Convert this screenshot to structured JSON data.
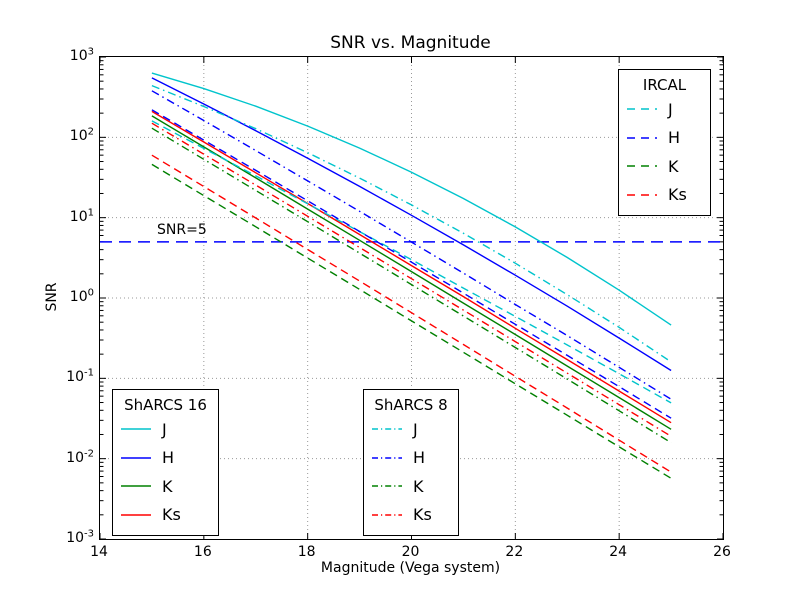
{
  "figure": {
    "title": "SNR vs. Magnitude",
    "xlabel": "Magnitude (Vega system)",
    "ylabel": "SNR",
    "background": "#ffffff"
  },
  "axes": {
    "xlim": [
      14,
      26
    ],
    "x_tick_labels": [
      "14",
      "16",
      "18",
      "20",
      "22",
      "24",
      "26"
    ],
    "x_ticks": [
      14,
      16,
      18,
      20,
      22,
      24,
      26
    ],
    "y_exponents": [
      "3",
      "2",
      "1",
      "0",
      "-1",
      "-2",
      "-3"
    ],
    "ylim": [
      0.001,
      1000
    ],
    "grid": "dotted",
    "grid_color": "#999999",
    "tick_color": "#000000"
  },
  "annotation": {
    "label": "SNR=5",
    "value": 5,
    "color": "#0000ff",
    "style": "dashed"
  },
  "band_colors": {
    "J": "#00c4cc",
    "H": "#0000ff",
    "K": "#008000",
    "Ks": "#ff0000"
  },
  "legends": [
    {
      "key": "ircal",
      "title": "IRCAL",
      "style": "dashed",
      "entries": [
        {
          "label": "J",
          "band": "J"
        },
        {
          "label": "H",
          "band": "H"
        },
        {
          "label": "K",
          "band": "K"
        },
        {
          "label": "Ks",
          "band": "Ks"
        }
      ]
    },
    {
      "key": "sharcs16",
      "title": "ShARCS 16",
      "style": "solid",
      "entries": [
        {
          "label": "J",
          "band": "J"
        },
        {
          "label": "H",
          "band": "H"
        },
        {
          "label": "K",
          "band": "K"
        },
        {
          "label": "Ks",
          "band": "Ks"
        }
      ]
    },
    {
      "key": "sharcs8",
      "title": "ShARCS 8",
      "style": "dashdot",
      "entries": [
        {
          "label": "J",
          "band": "J"
        },
        {
          "label": "H",
          "band": "H"
        },
        {
          "label": "K",
          "band": "K"
        },
        {
          "label": "Ks",
          "band": "Ks"
        }
      ]
    }
  ],
  "chart_data": {
    "type": "line",
    "x_axis": "Magnitude (Vega system)",
    "y_axis": "SNR (log scale)",
    "x": [
      15,
      16,
      17,
      18,
      19,
      20,
      21,
      22,
      23,
      24,
      25
    ],
    "series": [
      {
        "name": "ShARCS 16 J",
        "band": "J",
        "style": "solid",
        "values": [
          631,
          404,
          244,
          138,
          73.5,
          36.8,
          17.3,
          7.67,
          3.19,
          1.25,
          0.46
        ]
      },
      {
        "name": "ShARCS 16 H",
        "band": "H",
        "style": "solid",
        "values": [
          550,
          260,
          121,
          55.0,
          24.5,
          10.7,
          4.58,
          1.92,
          0.79,
          0.317,
          0.125
        ]
      },
      {
        "name": "ShARCS 16 K",
        "band": "K",
        "style": "solid",
        "values": [
          185,
          76.1,
          31.3,
          12.8,
          5.23,
          2.13,
          0.865,
          0.351,
          0.142,
          0.0575,
          0.0232
        ]
      },
      {
        "name": "ShARCS 16 Ks",
        "band": "Ks",
        "style": "solid",
        "values": [
          210,
          87.4,
          36.2,
          15.0,
          6.17,
          2.53,
          1.04,
          0.42,
          0.171,
          0.0694,
          0.028
        ]
      },
      {
        "name": "ShARCS 8 J",
        "band": "J",
        "style": "dashdot",
        "values": [
          440,
          242,
          128,
          64.3,
          31.1,
          14.4,
          6.38,
          2.71,
          1.1,
          0.43,
          0.16
        ]
      },
      {
        "name": "ShARCS 8 H",
        "band": "H",
        "style": "dashdot",
        "values": [
          380,
          162,
          68.3,
          28.7,
          12.0,
          4.96,
          2.04,
          0.83,
          0.34,
          0.137,
          0.055
        ]
      },
      {
        "name": "ShARCS 8 K",
        "band": "K",
        "style": "dashdot",
        "values": [
          130,
          53.3,
          21.8,
          8.9,
          3.62,
          1.47,
          0.597,
          0.242,
          0.0977,
          0.0394,
          0.0158
        ]
      },
      {
        "name": "ShARCS 8 Ks",
        "band": "Ks",
        "style": "dashdot",
        "values": [
          150,
          61.7,
          25.4,
          10.4,
          4.25,
          1.74,
          0.706,
          0.287,
          0.116,
          0.047,
          0.019
        ]
      },
      {
        "name": "IRCAL J",
        "band": "J",
        "style": "dashed",
        "values": [
          160,
          72.9,
          33.1,
          14.9,
          6.7,
          3.0,
          1.33,
          0.59,
          0.26,
          0.114,
          0.0495
        ]
      },
      {
        "name": "IRCAL H",
        "band": "H",
        "style": "dashed",
        "values": [
          220,
          92.5,
          38.8,
          16.2,
          6.73,
          2.79,
          1.15,
          0.47,
          0.193,
          0.0787,
          0.0319
        ]
      },
      {
        "name": "IRCAL K",
        "band": "K",
        "style": "dashed",
        "values": [
          46,
          18.8,
          7.69,
          3.14,
          1.28,
          0.519,
          0.211,
          0.0856,
          0.0347,
          0.014,
          0.0057
        ]
      },
      {
        "name": "IRCAL Ks",
        "band": "Ks",
        "style": "dashed",
        "values": [
          60,
          24.4,
          9.91,
          4.02,
          1.63,
          0.656,
          0.264,
          0.106,
          0.0426,
          0.017,
          0.0068
        ]
      }
    ]
  }
}
